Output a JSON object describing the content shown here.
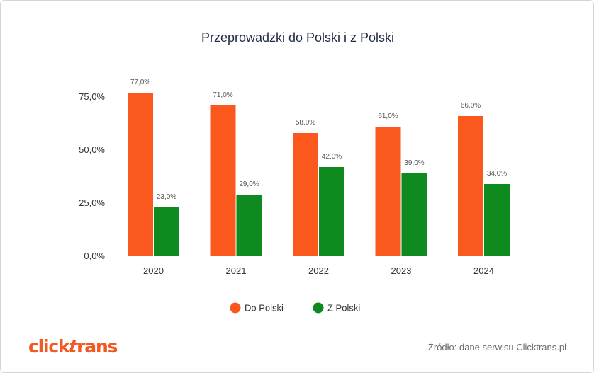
{
  "chart_data": {
    "type": "bar",
    "title": "Przeprowadzki do Polski i z Polski",
    "categories": [
      "2020",
      "2021",
      "2022",
      "2023",
      "2024"
    ],
    "series": [
      {
        "name": "Do Polski",
        "values": [
          77.0,
          71.0,
          58.0,
          61.0,
          66.0
        ],
        "color": "#fa581d"
      },
      {
        "name": "Z Polski",
        "values": [
          23.0,
          29.0,
          42.0,
          39.0,
          34.0
        ],
        "color": "#0e8a1f"
      }
    ],
    "data_labels": [
      [
        "77,0%",
        "71,0%",
        "58,0%",
        "61,0%",
        "66,0%"
      ],
      [
        "23,0%",
        "29,0%",
        "42,0%",
        "39,0%",
        "34,0%"
      ]
    ],
    "yticks": [
      0,
      25,
      50,
      75
    ],
    "ytick_labels": [
      "0,0%",
      "25,0%",
      "50,0%",
      "75,0%"
    ],
    "ylim": [
      0,
      80
    ],
    "xlabel": "",
    "ylabel": "",
    "grid": false,
    "legend": "bottom-center"
  },
  "footer": {
    "logo_text": "clicktrans",
    "source": "Źródło: dane serwisu Clicktrans.pl"
  },
  "colors": {
    "brand_orange": "#f05a22",
    "text_dark": "#1f2a44",
    "axis_text": "#333333",
    "label_text": "#555555"
  }
}
